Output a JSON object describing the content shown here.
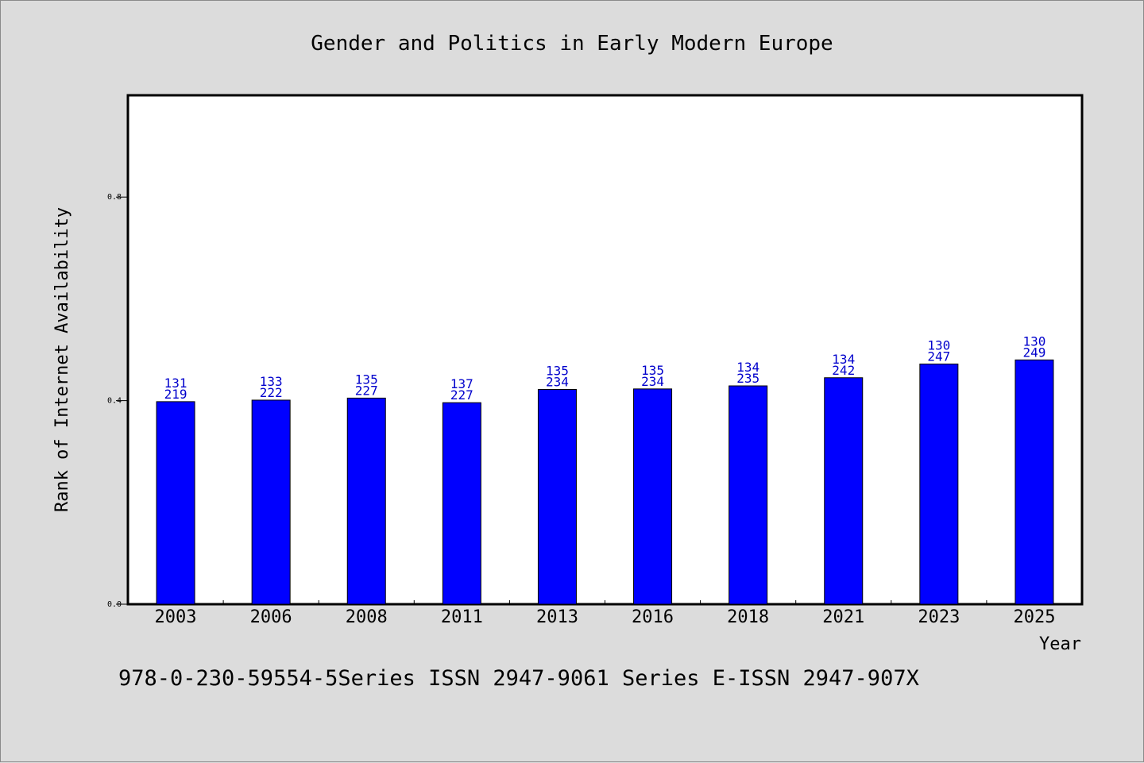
{
  "chart_data": {
    "type": "bar",
    "title": "Gender and Politics in Early Modern Europe",
    "xlabel": "Year",
    "ylabel": "Rank of Internet Availability",
    "ylim": [
      0,
      1.0
    ],
    "yticks": [
      "0.0",
      "0.4",
      "0.8"
    ],
    "ytick_values": [
      0.0,
      0.4,
      0.8
    ],
    "categories": [
      "2003",
      "2006",
      "2008",
      "2011",
      "2013",
      "2016",
      "2018",
      "2021",
      "2023",
      "2025"
    ],
    "values": [
      0.398,
      0.401,
      0.405,
      0.396,
      0.422,
      0.423,
      0.429,
      0.445,
      0.472,
      0.48
    ],
    "label_top": [
      "131",
      "133",
      "135",
      "137",
      "135",
      "135",
      "134",
      "134",
      "130",
      "130"
    ],
    "label_bottom": [
      "219",
      "222",
      "227",
      "227",
      "234",
      "234",
      "235",
      "242",
      "247",
      "249"
    ],
    "bar_color": "#0000ff",
    "label_color": "#0000cc",
    "grid": false,
    "legend": "none"
  },
  "footer": {
    "text": "978-0-230-59554-5Series ISSN 2947-9061 Series E-ISSN 2947-907X"
  }
}
